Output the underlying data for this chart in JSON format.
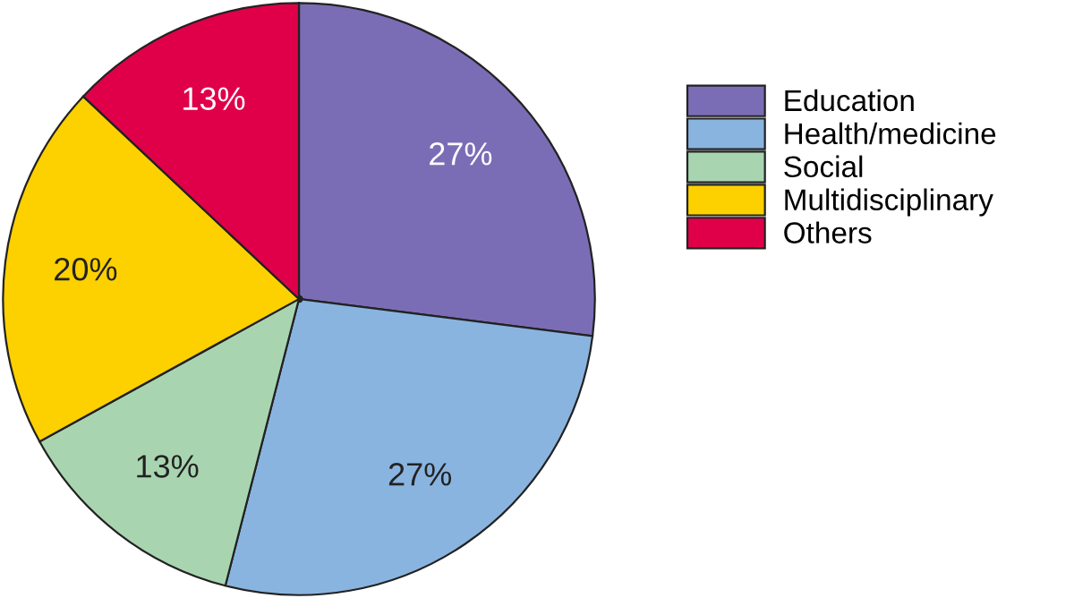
{
  "chart_data": {
    "type": "pie",
    "categories": [
      "Education",
      "Health/medicine",
      "Social",
      "Multidisciplinary",
      "Others"
    ],
    "values": [
      27,
      27,
      13,
      20,
      13
    ],
    "colors": [
      "#7b6db5",
      "#8ab4e0",
      "#a8d5b0",
      "#fdd000",
      "#e0004a"
    ],
    "value_labels": [
      "27%",
      "27%",
      "13%",
      "20%",
      "13%"
    ],
    "legend": "right"
  }
}
